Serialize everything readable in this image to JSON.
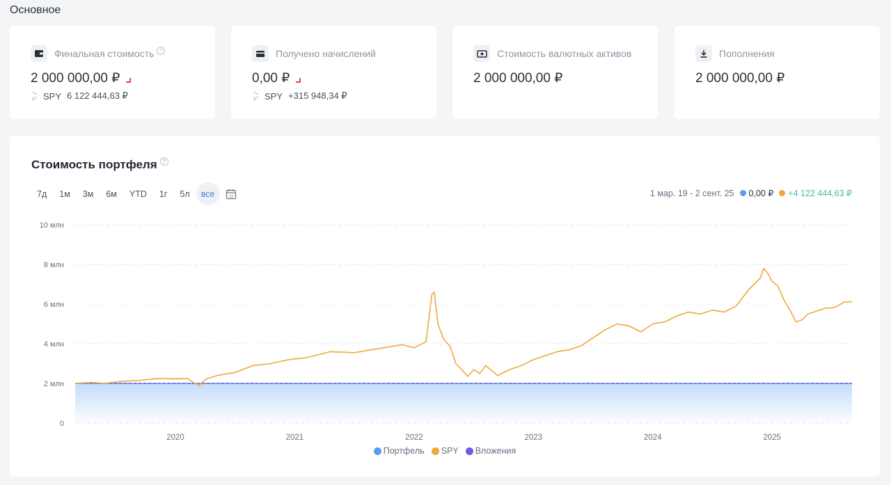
{
  "section_title": "Основное",
  "cards": [
    {
      "label": "Финальная стоимость",
      "value": "2 000 000,00 ₽",
      "sub_ticker": "SPY",
      "sub_value": "6 122 444,63 ₽",
      "icon": "wallet-icon"
    },
    {
      "label": "Получено начислений",
      "value": "0,00 ₽",
      "sub_ticker": "SPY",
      "sub_value": "+315 948,34 ₽",
      "icon": "card-icon"
    },
    {
      "label": "Стоимость валютных активов",
      "value": "2 000 000,00 ₽",
      "icon": "banknote-icon"
    },
    {
      "label": "Пополнения",
      "value": "2 000 000,00 ₽",
      "icon": "download-icon"
    }
  ],
  "chart_panel": {
    "title": "Стоимость портфеля",
    "periods": [
      "7д",
      "1м",
      "3м",
      "6м",
      "YTD",
      "1г",
      "5л",
      "все"
    ],
    "active_period": "все",
    "range": "1 мар. 19 - 2 сент. 25",
    "portfolio_change": "0,00 ₽",
    "spy_change": "+4 122 444,63 ₽"
  },
  "colors": {
    "portfolio": "#5b9cf0",
    "spy": "#efa93a",
    "invest": "#7b55e6",
    "positive": "#4bb8a6",
    "negative": "#e0474c"
  },
  "chart_data": {
    "type": "line",
    "x_range": [
      2019.16,
      2025.67
    ],
    "ylim": [
      0,
      10000000
    ],
    "y_ticks": [
      0,
      2000000,
      4000000,
      6000000,
      8000000,
      10000000
    ],
    "y_tick_labels": [
      "0",
      "2 млн",
      "4 млн",
      "6 млн",
      "8 млн",
      "10 млн"
    ],
    "x_ticks": [
      2020,
      2021,
      2022,
      2023,
      2024,
      2025
    ],
    "x_tick_labels": [
      "2020",
      "2021",
      "2022",
      "2023",
      "2024",
      "2025"
    ],
    "grid": true,
    "legend": "bottom",
    "series": [
      {
        "name": "Портфель",
        "color": "#5b9cf0",
        "x": [
          2019.16,
          2025.67
        ],
        "values": [
          2000000,
          2000000
        ]
      },
      {
        "name": "SPY",
        "color": "#efa93a",
        "x": [
          2019.16,
          2019.3,
          2019.4,
          2019.55,
          2019.7,
          2019.85,
          2020.0,
          2020.1,
          2020.15,
          2020.2,
          2020.25,
          2020.35,
          2020.5,
          2020.65,
          2020.8,
          2020.95,
          2021.1,
          2021.3,
          2021.5,
          2021.7,
          2021.9,
          2022.0,
          2022.1,
          2022.15,
          2022.17,
          2022.2,
          2022.25,
          2022.3,
          2022.35,
          2022.4,
          2022.45,
          2022.5,
          2022.55,
          2022.6,
          2022.7,
          2022.8,
          2022.9,
          2023.0,
          2023.1,
          2023.2,
          2023.3,
          2023.4,
          2023.5,
          2023.6,
          2023.7,
          2023.8,
          2023.9,
          2024.0,
          2024.1,
          2024.2,
          2024.3,
          2024.4,
          2024.5,
          2024.6,
          2024.7,
          2024.75,
          2024.8,
          2024.85,
          2024.9,
          2024.93,
          2024.97,
          2025.0,
          2025.05,
          2025.1,
          2025.15,
          2025.2,
          2025.25,
          2025.3,
          2025.35,
          2025.4,
          2025.45,
          2025.5,
          2025.55,
          2025.6,
          2025.67
        ],
        "values": [
          2000000,
          2050000,
          2000000,
          2100000,
          2150000,
          2250000,
          2230000,
          2250000,
          2050000,
          1900000,
          2200000,
          2400000,
          2550000,
          2900000,
          3000000,
          3200000,
          3300000,
          3600000,
          3550000,
          3750000,
          3950000,
          3800000,
          4100000,
          6500000,
          6600000,
          5000000,
          4200000,
          3900000,
          3000000,
          2700000,
          2350000,
          2700000,
          2500000,
          2900000,
          2400000,
          2700000,
          2900000,
          3200000,
          3400000,
          3600000,
          3700000,
          3900000,
          4300000,
          4700000,
          5000000,
          4900000,
          4600000,
          5000000,
          5100000,
          5400000,
          5600000,
          5500000,
          5700000,
          5600000,
          5900000,
          6300000,
          6700000,
          7000000,
          7300000,
          7800000,
          7500000,
          7150000,
          6900000,
          6200000,
          5700000,
          5100000,
          5200000,
          5500000,
          5600000,
          5700000,
          5800000,
          5800000,
          5900000,
          6100000,
          6122444
        ]
      },
      {
        "name": "Вложения",
        "color": "#7b55e6",
        "x": [
          2019.16,
          2025.67
        ],
        "values": [
          2000000,
          2000000
        ]
      }
    ]
  }
}
